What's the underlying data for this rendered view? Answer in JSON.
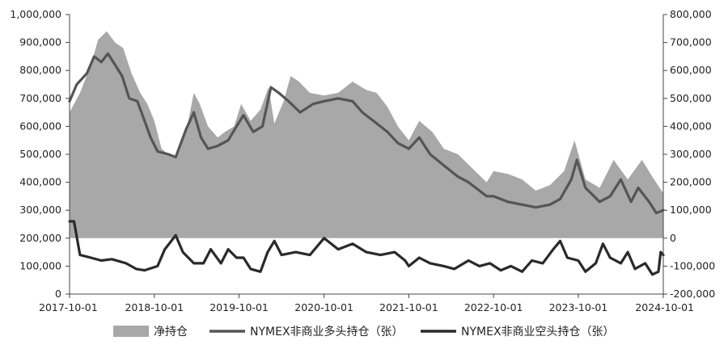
{
  "chart_data": {
    "type": "area+line",
    "title": "",
    "x_ticks": [
      "2017-10-01",
      "2018-10-01",
      "2019-10-01",
      "2020-10-01",
      "2021-10-01",
      "2022-10-01",
      "2023-10-01",
      "2024-10-01"
    ],
    "x_range": [
      "2017-10-01",
      "2024-10-01"
    ],
    "left_axis": {
      "range": [
        0,
        1000000
      ],
      "ticks": [
        0,
        100000,
        200000,
        300000,
        400000,
        500000,
        600000,
        700000,
        800000,
        900000,
        1000000
      ],
      "tick_labels": [
        "0",
        "100,000",
        "200,000",
        "300,000",
        "400,000",
        "500,000",
        "600,000",
        "700,000",
        "800,000",
        "900,000",
        "1,000,000"
      ]
    },
    "right_axis": {
      "range": [
        -200000,
        800000
      ],
      "ticks": [
        -200000,
        -100000,
        0,
        100000,
        200000,
        300000,
        400000,
        500000,
        600000,
        700000,
        800000
      ],
      "tick_labels": [
        "-200,000",
        "-100,000",
        "0",
        "100,000",
        "200,000",
        "300,000",
        "400,000",
        "500,000",
        "600,000",
        "700,000",
        "800,000"
      ]
    },
    "grid": false,
    "legend_position": "bottom",
    "series": [
      {
        "name": "净持仓",
        "kind": "area",
        "axis": "right",
        "color": "#a8a8a8",
        "points": [
          [
            "2017-10-01",
            450000
          ],
          [
            "2017-11-15",
            520000
          ],
          [
            "2018-01-01",
            620000
          ],
          [
            "2018-02-01",
            710000
          ],
          [
            "2018-03-10",
            740000
          ],
          [
            "2018-04-15",
            700000
          ],
          [
            "2018-05-20",
            680000
          ],
          [
            "2018-06-25",
            590000
          ],
          [
            "2018-08-01",
            520000
          ],
          [
            "2018-09-01",
            480000
          ],
          [
            "2018-10-01",
            420000
          ],
          [
            "2018-11-01",
            320000
          ],
          [
            "2018-12-01",
            300000
          ],
          [
            "2019-01-01",
            290000
          ],
          [
            "2019-02-15",
            380000
          ],
          [
            "2019-03-20",
            520000
          ],
          [
            "2019-04-15",
            480000
          ],
          [
            "2019-05-20",
            400000
          ],
          [
            "2019-07-01",
            360000
          ],
          [
            "2019-08-01",
            380000
          ],
          [
            "2019-09-10",
            400000
          ],
          [
            "2019-10-10",
            480000
          ],
          [
            "2019-11-20",
            420000
          ],
          [
            "2020-01-01",
            460000
          ],
          [
            "2020-02-05",
            540000
          ],
          [
            "2020-03-01",
            410000
          ],
          [
            "2020-04-10",
            490000
          ],
          [
            "2020-05-10",
            580000
          ],
          [
            "2020-06-15",
            560000
          ],
          [
            "2020-08-01",
            520000
          ],
          [
            "2020-10-01",
            510000
          ],
          [
            "2020-12-01",
            520000
          ],
          [
            "2021-02-01",
            560000
          ],
          [
            "2021-04-01",
            530000
          ],
          [
            "2021-05-15",
            520000
          ],
          [
            "2021-07-01",
            470000
          ],
          [
            "2021-08-15",
            400000
          ],
          [
            "2021-10-01",
            350000
          ],
          [
            "2021-11-15",
            420000
          ],
          [
            "2022-01-10",
            380000
          ],
          [
            "2022-03-01",
            320000
          ],
          [
            "2022-05-01",
            300000
          ],
          [
            "2022-07-01",
            250000
          ],
          [
            "2022-09-01",
            200000
          ],
          [
            "2022-10-01",
            240000
          ],
          [
            "2022-12-01",
            230000
          ],
          [
            "2023-02-01",
            210000
          ],
          [
            "2023-04-01",
            170000
          ],
          [
            "2023-06-01",
            190000
          ],
          [
            "2023-08-01",
            240000
          ],
          [
            "2023-09-15",
            350000
          ],
          [
            "2023-11-01",
            210000
          ],
          [
            "2024-01-01",
            180000
          ],
          [
            "2024-03-01",
            280000
          ],
          [
            "2024-05-01",
            210000
          ],
          [
            "2024-07-01",
            280000
          ],
          [
            "2024-08-15",
            220000
          ],
          [
            "2024-10-01",
            160000
          ]
        ]
      },
      {
        "name": "NYMEX非商业多头持仓（张）",
        "kind": "line",
        "axis": "left",
        "color": "#555555",
        "points": [
          [
            "2017-10-01",
            690000
          ],
          [
            "2017-11-01",
            750000
          ],
          [
            "2017-12-15",
            790000
          ],
          [
            "2018-01-15",
            850000
          ],
          [
            "2018-02-15",
            830000
          ],
          [
            "2018-03-15",
            860000
          ],
          [
            "2018-04-15",
            820000
          ],
          [
            "2018-05-15",
            780000
          ],
          [
            "2018-06-15",
            700000
          ],
          [
            "2018-07-20",
            690000
          ],
          [
            "2018-08-20",
            620000
          ],
          [
            "2018-09-15",
            560000
          ],
          [
            "2018-10-15",
            510000
          ],
          [
            "2018-12-01",
            500000
          ],
          [
            "2019-01-01",
            490000
          ],
          [
            "2019-02-15",
            590000
          ],
          [
            "2019-03-20",
            650000
          ],
          [
            "2019-04-20",
            560000
          ],
          [
            "2019-05-20",
            520000
          ],
          [
            "2019-07-01",
            530000
          ],
          [
            "2019-08-15",
            550000
          ],
          [
            "2019-09-20",
            600000
          ],
          [
            "2019-10-20",
            640000
          ],
          [
            "2019-12-01",
            580000
          ],
          [
            "2020-01-10",
            600000
          ],
          [
            "2020-02-15",
            740000
          ],
          [
            "2020-03-20",
            720000
          ],
          [
            "2020-05-01",
            690000
          ],
          [
            "2020-06-20",
            650000
          ],
          [
            "2020-08-15",
            680000
          ],
          [
            "2020-10-01",
            690000
          ],
          [
            "2020-12-01",
            700000
          ],
          [
            "2021-02-01",
            690000
          ],
          [
            "2021-03-15",
            650000
          ],
          [
            "2021-05-01",
            620000
          ],
          [
            "2021-07-01",
            580000
          ],
          [
            "2021-08-15",
            540000
          ],
          [
            "2021-10-01",
            520000
          ],
          [
            "2021-11-15",
            560000
          ],
          [
            "2022-01-01",
            500000
          ],
          [
            "2022-03-01",
            460000
          ],
          [
            "2022-05-01",
            420000
          ],
          [
            "2022-06-15",
            400000
          ],
          [
            "2022-09-01",
            350000
          ],
          [
            "2022-10-01",
            350000
          ],
          [
            "2022-12-01",
            330000
          ],
          [
            "2023-02-01",
            320000
          ],
          [
            "2023-04-01",
            310000
          ],
          [
            "2023-06-01",
            320000
          ],
          [
            "2023-07-15",
            340000
          ],
          [
            "2023-09-01",
            410000
          ],
          [
            "2023-09-25",
            480000
          ],
          [
            "2023-11-01",
            380000
          ],
          [
            "2024-01-01",
            330000
          ],
          [
            "2024-02-15",
            350000
          ],
          [
            "2024-04-01",
            410000
          ],
          [
            "2024-05-15",
            330000
          ],
          [
            "2024-06-15",
            380000
          ],
          [
            "2024-08-01",
            330000
          ],
          [
            "2024-09-01",
            290000
          ],
          [
            "2024-10-01",
            300000
          ]
        ]
      },
      {
        "name": "NYMEX非商业空头持仓（张）",
        "kind": "line",
        "axis": "left",
        "color": "#2a2a2a",
        "points": [
          [
            "2017-10-01",
            260000
          ],
          [
            "2017-10-20",
            260000
          ],
          [
            "2017-11-15",
            140000
          ],
          [
            "2018-01-01",
            130000
          ],
          [
            "2018-02-15",
            120000
          ],
          [
            "2018-04-01",
            125000
          ],
          [
            "2018-06-01",
            110000
          ],
          [
            "2018-07-15",
            90000
          ],
          [
            "2018-08-20",
            85000
          ],
          [
            "2018-10-15",
            100000
          ],
          [
            "2018-11-15",
            160000
          ],
          [
            "2019-01-01",
            210000
          ],
          [
            "2019-02-01",
            150000
          ],
          [
            "2019-03-20",
            110000
          ],
          [
            "2019-05-01",
            110000
          ],
          [
            "2019-06-01",
            160000
          ],
          [
            "2019-07-15",
            110000
          ],
          [
            "2019-08-15",
            160000
          ],
          [
            "2019-09-20",
            130000
          ],
          [
            "2019-10-20",
            130000
          ],
          [
            "2019-11-20",
            90000
          ],
          [
            "2020-01-01",
            80000
          ],
          [
            "2020-02-01",
            150000
          ],
          [
            "2020-03-01",
            190000
          ],
          [
            "2020-04-01",
            140000
          ],
          [
            "2020-06-01",
            150000
          ],
          [
            "2020-08-01",
            140000
          ],
          [
            "2020-10-01",
            200000
          ],
          [
            "2020-12-01",
            160000
          ],
          [
            "2021-02-01",
            180000
          ],
          [
            "2021-04-01",
            150000
          ],
          [
            "2021-06-01",
            140000
          ],
          [
            "2021-08-01",
            150000
          ],
          [
            "2021-09-15",
            120000
          ],
          [
            "2021-10-01",
            100000
          ],
          [
            "2021-11-15",
            130000
          ],
          [
            "2022-01-01",
            110000
          ],
          [
            "2022-03-01",
            100000
          ],
          [
            "2022-04-15",
            90000
          ],
          [
            "2022-06-15",
            120000
          ],
          [
            "2022-08-01",
            100000
          ],
          [
            "2022-09-15",
            110000
          ],
          [
            "2022-11-01",
            85000
          ],
          [
            "2022-12-15",
            100000
          ],
          [
            "2023-02-01",
            80000
          ],
          [
            "2023-03-15",
            120000
          ],
          [
            "2023-05-01",
            110000
          ],
          [
            "2023-06-15",
            160000
          ],
          [
            "2023-07-15",
            190000
          ],
          [
            "2023-08-15",
            130000
          ],
          [
            "2023-10-01",
            120000
          ],
          [
            "2023-11-01",
            80000
          ],
          [
            "2023-12-15",
            110000
          ],
          [
            "2024-01-15",
            180000
          ],
          [
            "2024-02-15",
            130000
          ],
          [
            "2024-04-01",
            110000
          ],
          [
            "2024-05-01",
            150000
          ],
          [
            "2024-06-01",
            90000
          ],
          [
            "2024-07-15",
            110000
          ],
          [
            "2024-08-15",
            70000
          ],
          [
            "2024-09-10",
            80000
          ],
          [
            "2024-09-20",
            150000
          ],
          [
            "2024-10-01",
            140000
          ]
        ]
      }
    ]
  }
}
